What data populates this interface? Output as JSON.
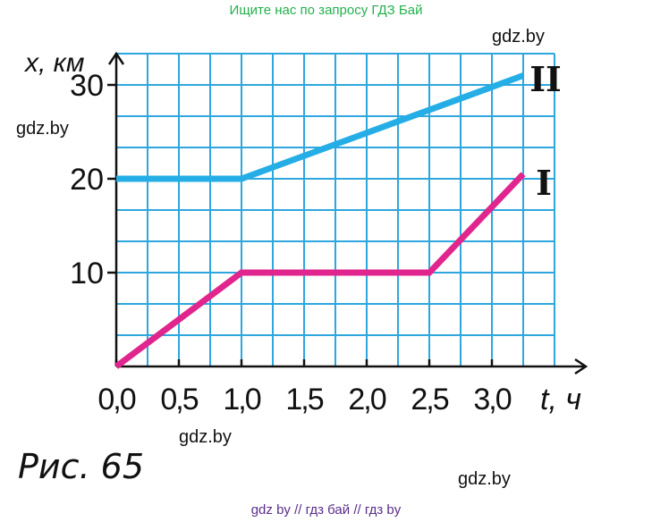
{
  "watermarks": {
    "top": "Ищите нас по запросу ГДЗ Бай",
    "gdz1": "gdz.by",
    "gdz2": "gdz.by",
    "gdz3": "gdz.by",
    "gdz4": "gdz.by",
    "bottom": "gdz by  //  гдз бай  //  гдз by"
  },
  "caption": "Рис. 65",
  "colors": {
    "grid": "#2ea6de",
    "axis": "#111111",
    "series_I": "#e0268e",
    "series_II": "#25aee6"
  },
  "chart_data": {
    "type": "line",
    "xlabel": "t, ч",
    "ylabel": "x, км",
    "xlim": [
      0,
      3.5
    ],
    "ylim": [
      0,
      30
    ],
    "x_ticks": [
      "0,0",
      "0,5",
      "1,0",
      "1,5",
      "2,0",
      "2,5",
      "3,0"
    ],
    "y_ticks": [
      "10",
      "20",
      "30"
    ],
    "grid": true,
    "series": [
      {
        "name": "I",
        "x": [
          0,
          1.0,
          2.5,
          3.25
        ],
        "y": [
          0,
          10,
          10,
          20.5
        ]
      },
      {
        "name": "II",
        "x": [
          0,
          1.0,
          3.25
        ],
        "y": [
          20,
          20,
          31
        ]
      }
    ]
  }
}
